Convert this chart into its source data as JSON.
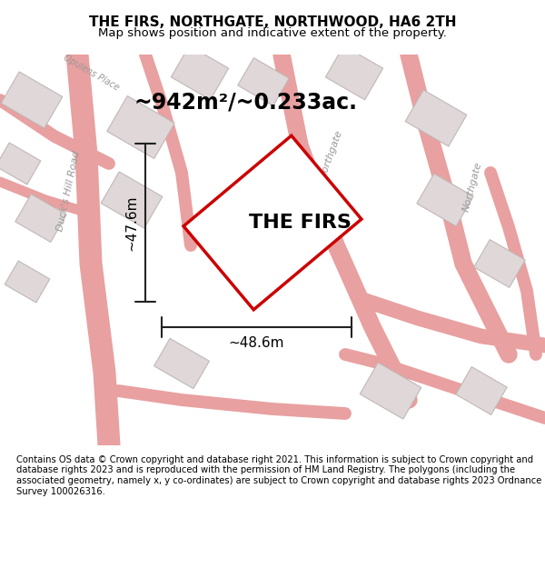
{
  "title": "THE FIRS, NORTHGATE, NORTHWOOD, HA6 2TH",
  "subtitle": "Map shows position and indicative extent of the property.",
  "area_label": "~942m²/~0.233ac.",
  "property_label": "THE FIRS",
  "dim_horizontal": "~48.6m",
  "dim_vertical": "~47.6m",
  "footer": "Contains OS data © Crown copyright and database right 2021. This information is subject to Crown copyright and database rights 2023 and is reproduced with the permission of HM Land Registry. The polygons (including the associated geometry, namely x, y co-ordinates) are subject to Crown copyright and database rights 2023 Ordnance Survey 100026316.",
  "bg_color": "#f5f0f0",
  "map_bg": "#f8f4f4",
  "road_color": "#e8a0a0",
  "building_color": "#e0d8d8",
  "building_edge": "#c0b8b8",
  "property_outline_color": "#cc0000",
  "dim_line_color": "#222222",
  "title_fontsize": 11,
  "subtitle_fontsize": 9.5,
  "area_fontsize": 17,
  "property_label_fontsize": 16,
  "dim_fontsize": 11,
  "footer_fontsize": 7.2,
  "road_label_color": "#999999",
  "road_label_fontsize": 8,
  "figsize": [
    6.0,
    6.25
  ],
  "dpi": 100
}
